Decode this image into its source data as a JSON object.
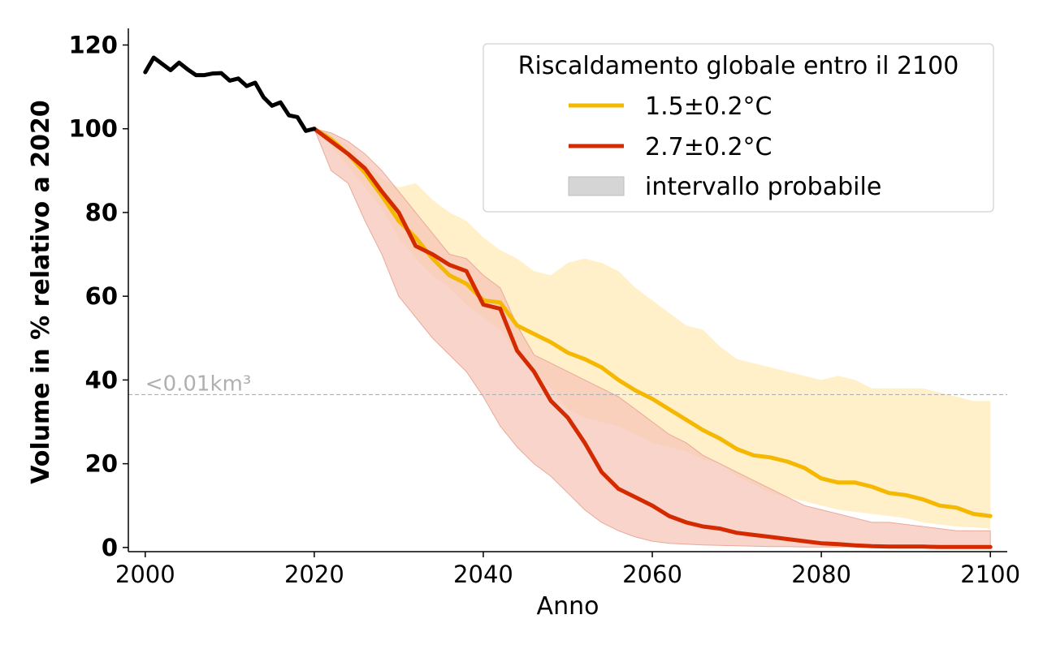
{
  "chart_data": {
    "type": "line",
    "title": "",
    "xlabel": "Anno",
    "ylabel": "Volume in % relativo a 2020",
    "xlim": [
      1998,
      2102
    ],
    "ylim": [
      -1,
      123
    ],
    "xticks": [
      2000,
      2020,
      2040,
      2060,
      2080,
      2100
    ],
    "yticks": [
      0,
      20,
      40,
      60,
      80,
      100,
      120
    ],
    "grid": false,
    "legend": {
      "position": "top-right",
      "title": "Riscaldamento globale entro il 2100",
      "entries": [
        {
          "label": "1.5±0.2°C",
          "kind": "line",
          "color": "#f5b800"
        },
        {
          "label": "2.7±0.2°C",
          "kind": "line",
          "color": "#d42a00"
        },
        {
          "label": "intervallo probabile",
          "kind": "band",
          "color": "#d5d5d5"
        }
      ]
    },
    "threshold": {
      "y": 36.5,
      "label": "<0.01km³",
      "color": "#b0b0b0"
    },
    "historical": {
      "color": "#000000",
      "x": [
        2000,
        2001,
        2002,
        2003,
        2004,
        2005,
        2006,
        2007,
        2008,
        2009,
        2010,
        2011,
        2012,
        2013,
        2014,
        2015,
        2016,
        2017,
        2018,
        2019,
        2020
      ],
      "y": [
        113.5,
        117,
        115.5,
        114,
        115.8,
        114.2,
        112.8,
        112.8,
        113.2,
        113.3,
        111.5,
        112,
        110.2,
        111,
        107.5,
        105.5,
        106.3,
        103.2,
        102.8,
        99.5,
        100
      ]
    },
    "series": [
      {
        "name": "1.5±0.2°C",
        "color": "#f5b800",
        "band_color": "#ffefc6",
        "x": [
          2020,
          2022,
          2024,
          2026,
          2028,
          2030,
          2032,
          2034,
          2036,
          2038,
          2040,
          2042,
          2044,
          2046,
          2048,
          2050,
          2052,
          2054,
          2056,
          2058,
          2060,
          2062,
          2064,
          2066,
          2068,
          2070,
          2072,
          2074,
          2076,
          2078,
          2080,
          2082,
          2084,
          2086,
          2088,
          2090,
          2092,
          2094,
          2096,
          2098,
          2100
        ],
        "y": [
          100,
          97.5,
          94,
          89.5,
          84,
          78,
          74,
          69,
          65,
          63,
          59,
          58.5,
          53,
          51,
          49,
          46.5,
          45,
          43,
          40,
          37.5,
          35.5,
          33,
          30.5,
          28,
          26,
          23.5,
          22,
          21.5,
          20.5,
          19,
          16.5,
          15.5,
          15.5,
          14.5,
          13,
          12.5,
          11.5,
          10,
          9.5,
          8,
          7.5
        ],
        "lower": [
          100,
          96,
          91,
          86,
          81,
          74,
          69,
          65,
          62,
          58,
          55,
          52,
          46,
          41,
          38,
          33,
          31,
          30,
          29,
          27,
          25,
          24,
          23,
          21,
          20,
          17,
          15,
          13,
          12,
          11,
          10,
          9,
          8.5,
          8,
          7.5,
          7,
          6,
          5.5,
          5,
          4.8,
          4.5
        ],
        "upper": [
          100,
          98.5,
          96,
          92,
          88,
          86,
          87,
          83,
          80,
          78,
          74,
          71,
          69,
          66,
          65,
          68,
          69,
          68,
          66,
          62,
          59,
          56,
          53,
          52,
          48,
          45,
          44,
          43,
          42,
          41,
          40,
          41,
          40,
          38,
          38,
          38,
          38,
          37,
          36,
          35,
          35
        ]
      },
      {
        "name": "2.7±0.2°C",
        "color": "#d42a00",
        "band_color": "#f5c2b5",
        "x": [
          2020,
          2022,
          2024,
          2026,
          2028,
          2030,
          2032,
          2034,
          2036,
          2038,
          2040,
          2042,
          2044,
          2046,
          2048,
          2050,
          2052,
          2054,
          2056,
          2058,
          2060,
          2062,
          2064,
          2066,
          2068,
          2070,
          2072,
          2074,
          2076,
          2078,
          2080,
          2082,
          2084,
          2086,
          2088,
          2090,
          2092,
          2094,
          2096,
          2098,
          2100
        ],
        "y": [
          100,
          97,
          94,
          90.5,
          85,
          80,
          72,
          70,
          67.5,
          66,
          58,
          57,
          47,
          42,
          35,
          31,
          25,
          18,
          14,
          12,
          10,
          7.5,
          6,
          5,
          4.5,
          3.5,
          3,
          2.5,
          2,
          1.5,
          1,
          0.8,
          0.5,
          0.3,
          0.2,
          0.2,
          0.2,
          0.1,
          0.1,
          0.1,
          0.1
        ],
        "lower": [
          100,
          90,
          87,
          78,
          70,
          60,
          55,
          50,
          46,
          42,
          36,
          29,
          24,
          20,
          17,
          13,
          9,
          6,
          4,
          2.5,
          1.5,
          1,
          0.8,
          0.6,
          0.5,
          0.4,
          0.3,
          0.2,
          0.2,
          0.1,
          0.1,
          0.1,
          0.1,
          0.1,
          0.1,
          0.1,
          0.1,
          0.1,
          0.1,
          0.1,
          0.1
        ],
        "upper": [
          100,
          99,
          97,
          94,
          90,
          85,
          80,
          75,
          70,
          69,
          65,
          62,
          53,
          46,
          44,
          42,
          40,
          38,
          36,
          33,
          30,
          27,
          25,
          22,
          20,
          18,
          16,
          14,
          12,
          10,
          9,
          8,
          7,
          6,
          6,
          5.5,
          5,
          4.5,
          4,
          4,
          4
        ]
      }
    ]
  }
}
